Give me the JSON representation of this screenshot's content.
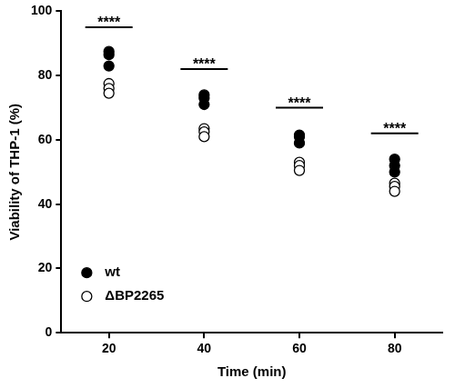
{
  "chart_data": {
    "type": "scatter",
    "x_label": "Time (min)",
    "y_label": "Viability of THP-1 (%)",
    "xlim": [
      10,
      90
    ],
    "xticks": [
      20,
      40,
      60,
      80
    ],
    "ylim": [
      0,
      100
    ],
    "yticks": [
      0,
      20,
      40,
      60,
      80,
      100
    ],
    "grid": false,
    "legend": "lower left",
    "series": [
      {
        "name": "wt",
        "color": "#000000",
        "marker": "filled_circle",
        "x": [
          20,
          20,
          20,
          40,
          40,
          40,
          60,
          60,
          60,
          80,
          80,
          80
        ],
        "values": [
          87.5,
          86.5,
          83,
          74,
          73,
          71,
          61.5,
          61,
          59,
          54,
          52,
          50
        ]
      },
      {
        "name": "ΔBP2265",
        "color": "#000000",
        "marker": "open_circle",
        "x": [
          20,
          20,
          20,
          40,
          40,
          40,
          60,
          60,
          60,
          80,
          80,
          80
        ],
        "values": [
          77.5,
          76,
          74.5,
          63.5,
          62.5,
          61,
          53,
          52,
          50.5,
          46.5,
          45.5,
          44
        ]
      }
    ],
    "annotations": [
      {
        "x": 20,
        "y": 95,
        "text": "****"
      },
      {
        "x": 40,
        "y": 82,
        "text": "****"
      },
      {
        "x": 60,
        "y": 70,
        "text": "****"
      },
      {
        "x": 80,
        "y": 62,
        "text": "****"
      }
    ]
  }
}
